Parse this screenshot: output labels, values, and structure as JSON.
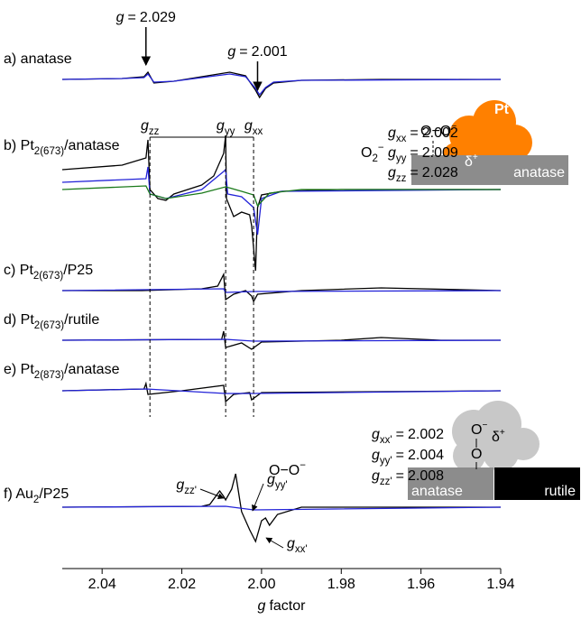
{
  "chart_data": {
    "type": "line",
    "x_label": {
      "sym": "g",
      "text": "factor"
    },
    "xlim": [
      2.05,
      1.94
    ],
    "xticks": [
      2.04,
      2.02,
      {
        "value": 2,
        "label": "2.00"
      },
      1.98,
      1.96,
      1.94
    ],
    "panels": [
      {
        "label": {
          "text": "a) anatase"
        },
        "series": [
          {
            "color": "#000000",
            "x": [
              2.05,
              2.035,
              2.0295,
              2.0285,
              2.027,
              2.022,
              2.015,
              2.008,
              2.004,
              2.0015,
              2.0005,
              1.999,
              1.997,
              1.99,
              1.97,
              1.94
            ],
            "values": [
              0,
              1,
              3,
              8,
              -4,
              -2,
              3,
              8,
              4,
              -12,
              -20,
              -10,
              -4,
              -1,
              0,
              0
            ]
          },
          {
            "color": "#2323d8",
            "x": [
              2.05,
              2.035,
              2.0295,
              2.0285,
              2.027,
              2.022,
              2.015,
              2.008,
              2.004,
              2.0015,
              2.0005,
              1.999,
              1.997,
              1.99,
              1.94
            ],
            "values": [
              0,
              1,
              2,
              6,
              -3,
              -2,
              2,
              6,
              3,
              -10,
              -17,
              -9,
              -3,
              -1,
              0
            ]
          }
        ]
      },
      {
        "label": {
          "text": "b) Pt",
          "sub": "2(673)",
          "tail": "/anatase"
        },
        "series": [
          {
            "color": "#000000",
            "x": [
              2.05,
              2.035,
              2.029,
              2.0285,
              2.028,
              2.026,
              2.024,
              2.022,
              2.015,
              2.012,
              2.0095,
              2.009,
              2.0088,
              2.007,
              2.005,
              2.003,
              2.0025,
              2.0015,
              2.001,
              2,
              1.995,
              1.98,
              1.94
            ],
            "values": [
              22,
              27,
              35,
              55,
              0,
              -10,
              -12,
              -5,
              5,
              15,
              40,
              60,
              -10,
              -30,
              -25,
              -28,
              -40,
              -90,
              -20,
              -6,
              -2,
              0,
              0
            ]
          },
          {
            "color": "#2323d8",
            "x": [
              2.05,
              2.029,
              2.0285,
              2.028,
              2.024,
              2.015,
              2.0095,
              2.009,
              2.0085,
              2.005,
              2.002,
              2.001,
              2,
              1.995,
              1.94
            ],
            "values": [
              8,
              12,
              25,
              -5,
              -10,
              0,
              20,
              22,
              -5,
              -8,
              -20,
              -50,
              -10,
              -2,
              0
            ]
          },
          {
            "color": "#1a7a1a",
            "x": [
              2.05,
              2.029,
              2.028,
              2.024,
              2.015,
              2.009,
              2.005,
              2.002,
              2.001,
              1.998,
              1.99,
              1.94
            ],
            "values": [
              0,
              4,
              -5,
              -10,
              -4,
              3,
              -2,
              -6,
              -18,
              -4,
              0,
              0
            ]
          }
        ]
      },
      {
        "label": {
          "text": "c) Pt",
          "sub": "2(673)",
          "tail": "/P25"
        },
        "series": [
          {
            "color": "#000000",
            "x": [
              2.05,
              2.03,
              2.015,
              2.011,
              2.0095,
              2.009,
              2.007,
              2.004,
              2.0025,
              2.002,
              2.001,
              1.99,
              1.97,
              1.94
            ],
            "values": [
              0,
              0,
              2,
              5,
              18,
              -10,
              -4,
              0,
              -6,
              -12,
              -4,
              0,
              3,
              0
            ]
          },
          {
            "color": "#2323d8",
            "x": [
              2.05,
              2.0095,
              2.009,
              2.002,
              1.94
            ],
            "values": [
              0,
              2,
              -2,
              -1,
              0
            ]
          }
        ]
      },
      {
        "label": {
          "text": "d) Pt",
          "sub": "2(673)",
          "tail": "/rutile"
        },
        "series": [
          {
            "color": "#000000",
            "x": [
              2.05,
              2.01,
              2.0095,
              2.009,
              2.005,
              2.0025,
              2,
              1.98,
              1.97,
              1.955,
              1.94
            ],
            "values": [
              0,
              1,
              10,
              -8,
              -3,
              -10,
              -2,
              0,
              3,
              0,
              0
            ]
          },
          {
            "color": "#2323d8",
            "x": [
              2.05,
              2.009,
              2.002,
              1.94
            ],
            "values": [
              0,
              1,
              -1,
              0
            ]
          }
        ]
      },
      {
        "label": {
          "text": "e) Pt",
          "sub": "2(873)",
          "tail": "/anatase"
        },
        "series": [
          {
            "color": "#000000",
            "x": [
              2.05,
              2.0295,
              2.029,
              2.0285,
              2.02,
              2.0095,
              2.009,
              2.007,
              2.003,
              2.0025,
              2,
              1.94
            ],
            "values": [
              0,
              2,
              8,
              -4,
              0,
              6,
              -12,
              -4,
              -2,
              -10,
              -2,
              0
            ]
          },
          {
            "color": "#2323d8",
            "x": [
              2.05,
              2.029,
              2.009,
              2.0025,
              1.94
            ],
            "values": [
              0,
              2,
              -3,
              -3,
              0
            ]
          }
        ]
      },
      {
        "label": {
          "text": "f) Au",
          "sub": "2",
          "tail": "/P25"
        },
        "series": [
          {
            "color": "#000000",
            "x": [
              2.05,
              2.015,
              2.013,
              2.0105,
              2.0095,
              2.009,
              2.0075,
              2.0065,
              2.005,
              2.003,
              2.0015,
              2,
              1.999,
              1.998,
              1.996,
              1.99,
              1.94
            ],
            "values": [
              0,
              1,
              3,
              18,
              12,
              8,
              20,
              37,
              -5,
              -25,
              -38,
              -15,
              -12,
              -20,
              -8,
              0,
              0
            ]
          },
          {
            "color": "#2323d8",
            "x": [
              2.05,
              2.009,
              2.002,
              1.94
            ],
            "values": [
              0,
              1,
              -3,
              0
            ]
          }
        ]
      }
    ],
    "annotations": {
      "peak_marks": [
        {
          "sym": "g",
          "rel": "=",
          "value": 2.029
        },
        {
          "sym": "g",
          "rel": "=",
          "value": 2.001
        }
      ],
      "tensor_b": {
        "species": {
          "text": "O",
          "sub": "2",
          "sup": "−"
        },
        "components": [
          {
            "sym": "g",
            "sub": "xx",
            "rel": "=",
            "value": 2.002
          },
          {
            "sym": "g",
            "sub": "yy",
            "rel": "=",
            "value": 2.009
          },
          {
            "sym": "g",
            "sub": "zz",
            "rel": "=",
            "value": 2.028
          }
        ]
      },
      "tensor_f": {
        "species": {
          "text": "O−O",
          "sup": "−"
        },
        "components": [
          {
            "sym": "g",
            "sub": "xx'",
            "rel": "=",
            "value": 2.002
          },
          {
            "sym": "g",
            "sub": "yy'",
            "rel": "=",
            "value": 2.004
          },
          {
            "sym": "g",
            "sub": "zz'",
            "rel": "=",
            "value": 2.008
          }
        ]
      },
      "pt_scheme": {
        "metal": "Pt",
        "charge": {
          "text": "δ",
          "sup": "+"
        },
        "adsorbate": {
          "text": "O−O",
          "sup": "−"
        },
        "support": "anatase"
      },
      "au_scheme": {
        "adsorbate_top": {
          "text": "O",
          "sup": "−"
        },
        "charge": {
          "text": "δ",
          "sup": "+"
        },
        "adsorbate_bottom": "O",
        "supports": [
          "anatase",
          "rutile"
        ]
      }
    }
  }
}
